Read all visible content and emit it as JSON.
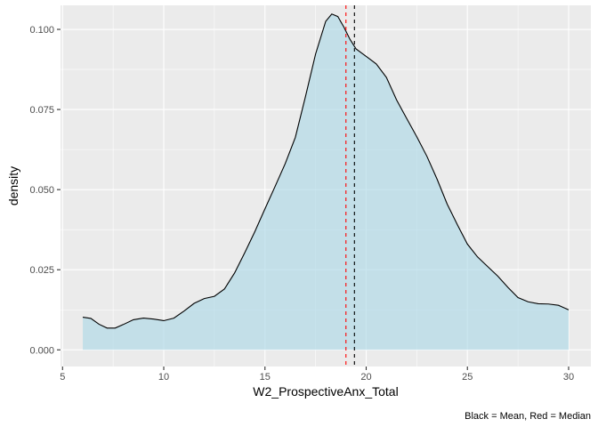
{
  "chart_data": {
    "type": "area",
    "title": "",
    "xlabel": "W2_ProspectiveAnx_Total",
    "ylabel": "density",
    "caption": "Black = Mean, Red = Median",
    "xlim": [
      4.9,
      31.1
    ],
    "ylim": [
      -0.0052,
      0.1075
    ],
    "x_ticks": [
      5,
      10,
      15,
      20,
      25,
      30
    ],
    "x_tick_labels": [
      "5",
      "10",
      "15",
      "20",
      "25",
      "30"
    ],
    "y_ticks": [
      0.0,
      0.025,
      0.05,
      0.075,
      0.1
    ],
    "y_tick_labels": [
      "0.000",
      "0.025",
      "0.050",
      "0.075",
      "0.100"
    ],
    "grid": true,
    "fill_color": "#ADD8E6",
    "line_color": "#000000",
    "panel_background": "#EBEBEB",
    "grid_color": "#FFFFFF",
    "density": {
      "x": [
        6.0,
        6.4,
        6.8,
        7.2,
        7.6,
        8.0,
        8.5,
        9.0,
        9.5,
        10.0,
        10.5,
        11.0,
        11.5,
        12.0,
        12.5,
        13.0,
        13.5,
        14.0,
        14.5,
        15.0,
        15.5,
        16.0,
        16.5,
        17.0,
        17.5,
        18.0,
        18.3,
        18.6,
        18.9,
        19.2,
        19.5,
        19.8,
        20.1,
        20.5,
        21.0,
        21.5,
        22.0,
        22.5,
        23.0,
        23.5,
        24.0,
        24.5,
        25.0,
        25.5,
        26.0,
        26.5,
        27.0,
        27.5,
        28.0,
        28.5,
        29.0,
        29.5,
        30.0
      ],
      "y": [
        0.0102,
        0.0098,
        0.008,
        0.0068,
        0.0068,
        0.0079,
        0.0094,
        0.0099,
        0.0096,
        0.0091,
        0.0099,
        0.0121,
        0.0145,
        0.016,
        0.0167,
        0.019,
        0.024,
        0.0303,
        0.0369,
        0.044,
        0.051,
        0.0581,
        0.0663,
        0.079,
        0.0923,
        0.1025,
        0.1048,
        0.104,
        0.1007,
        0.0969,
        0.0939,
        0.0925,
        0.0911,
        0.0892,
        0.085,
        0.078,
        0.0722,
        0.0665,
        0.0604,
        0.0533,
        0.0455,
        0.0391,
        0.033,
        0.029,
        0.026,
        0.023,
        0.0195,
        0.0163,
        0.015,
        0.0144,
        0.0143,
        0.0139,
        0.0125
      ]
    },
    "vlines": [
      {
        "label": "Median",
        "x": 19.0,
        "color": "#FF0000",
        "linetype": "dashed"
      },
      {
        "label": "Mean",
        "x": 19.42,
        "color": "#000000",
        "linetype": "dashed"
      }
    ]
  }
}
